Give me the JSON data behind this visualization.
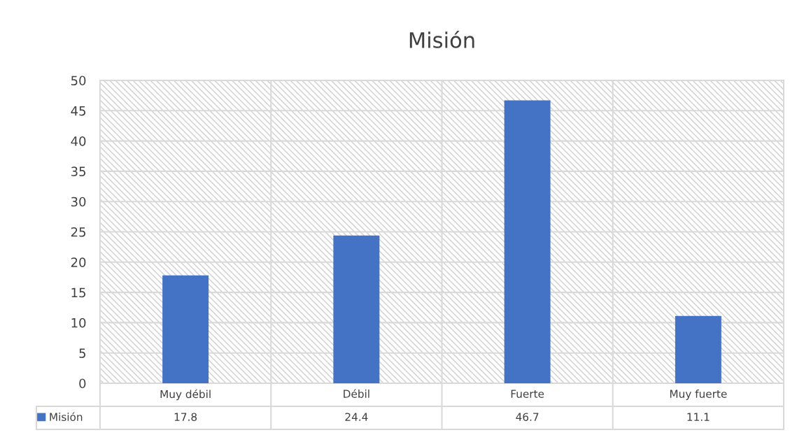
{
  "chart_data": {
    "type": "bar",
    "title": "Misión",
    "categories": [
      "Muy débil",
      "Débil",
      "Fuerte",
      "Muy fuerte"
    ],
    "series": [
      {
        "name": "Misión",
        "color": "#4472c4",
        "values": [
          17.8,
          24.4,
          46.7,
          11.1
        ]
      }
    ],
    "ylim": [
      0,
      50
    ],
    "yticks": [
      0,
      5,
      10,
      15,
      20,
      25,
      30,
      35,
      40,
      45,
      50
    ],
    "grid": "y",
    "legend": "bottom left",
    "data_labels": true
  }
}
